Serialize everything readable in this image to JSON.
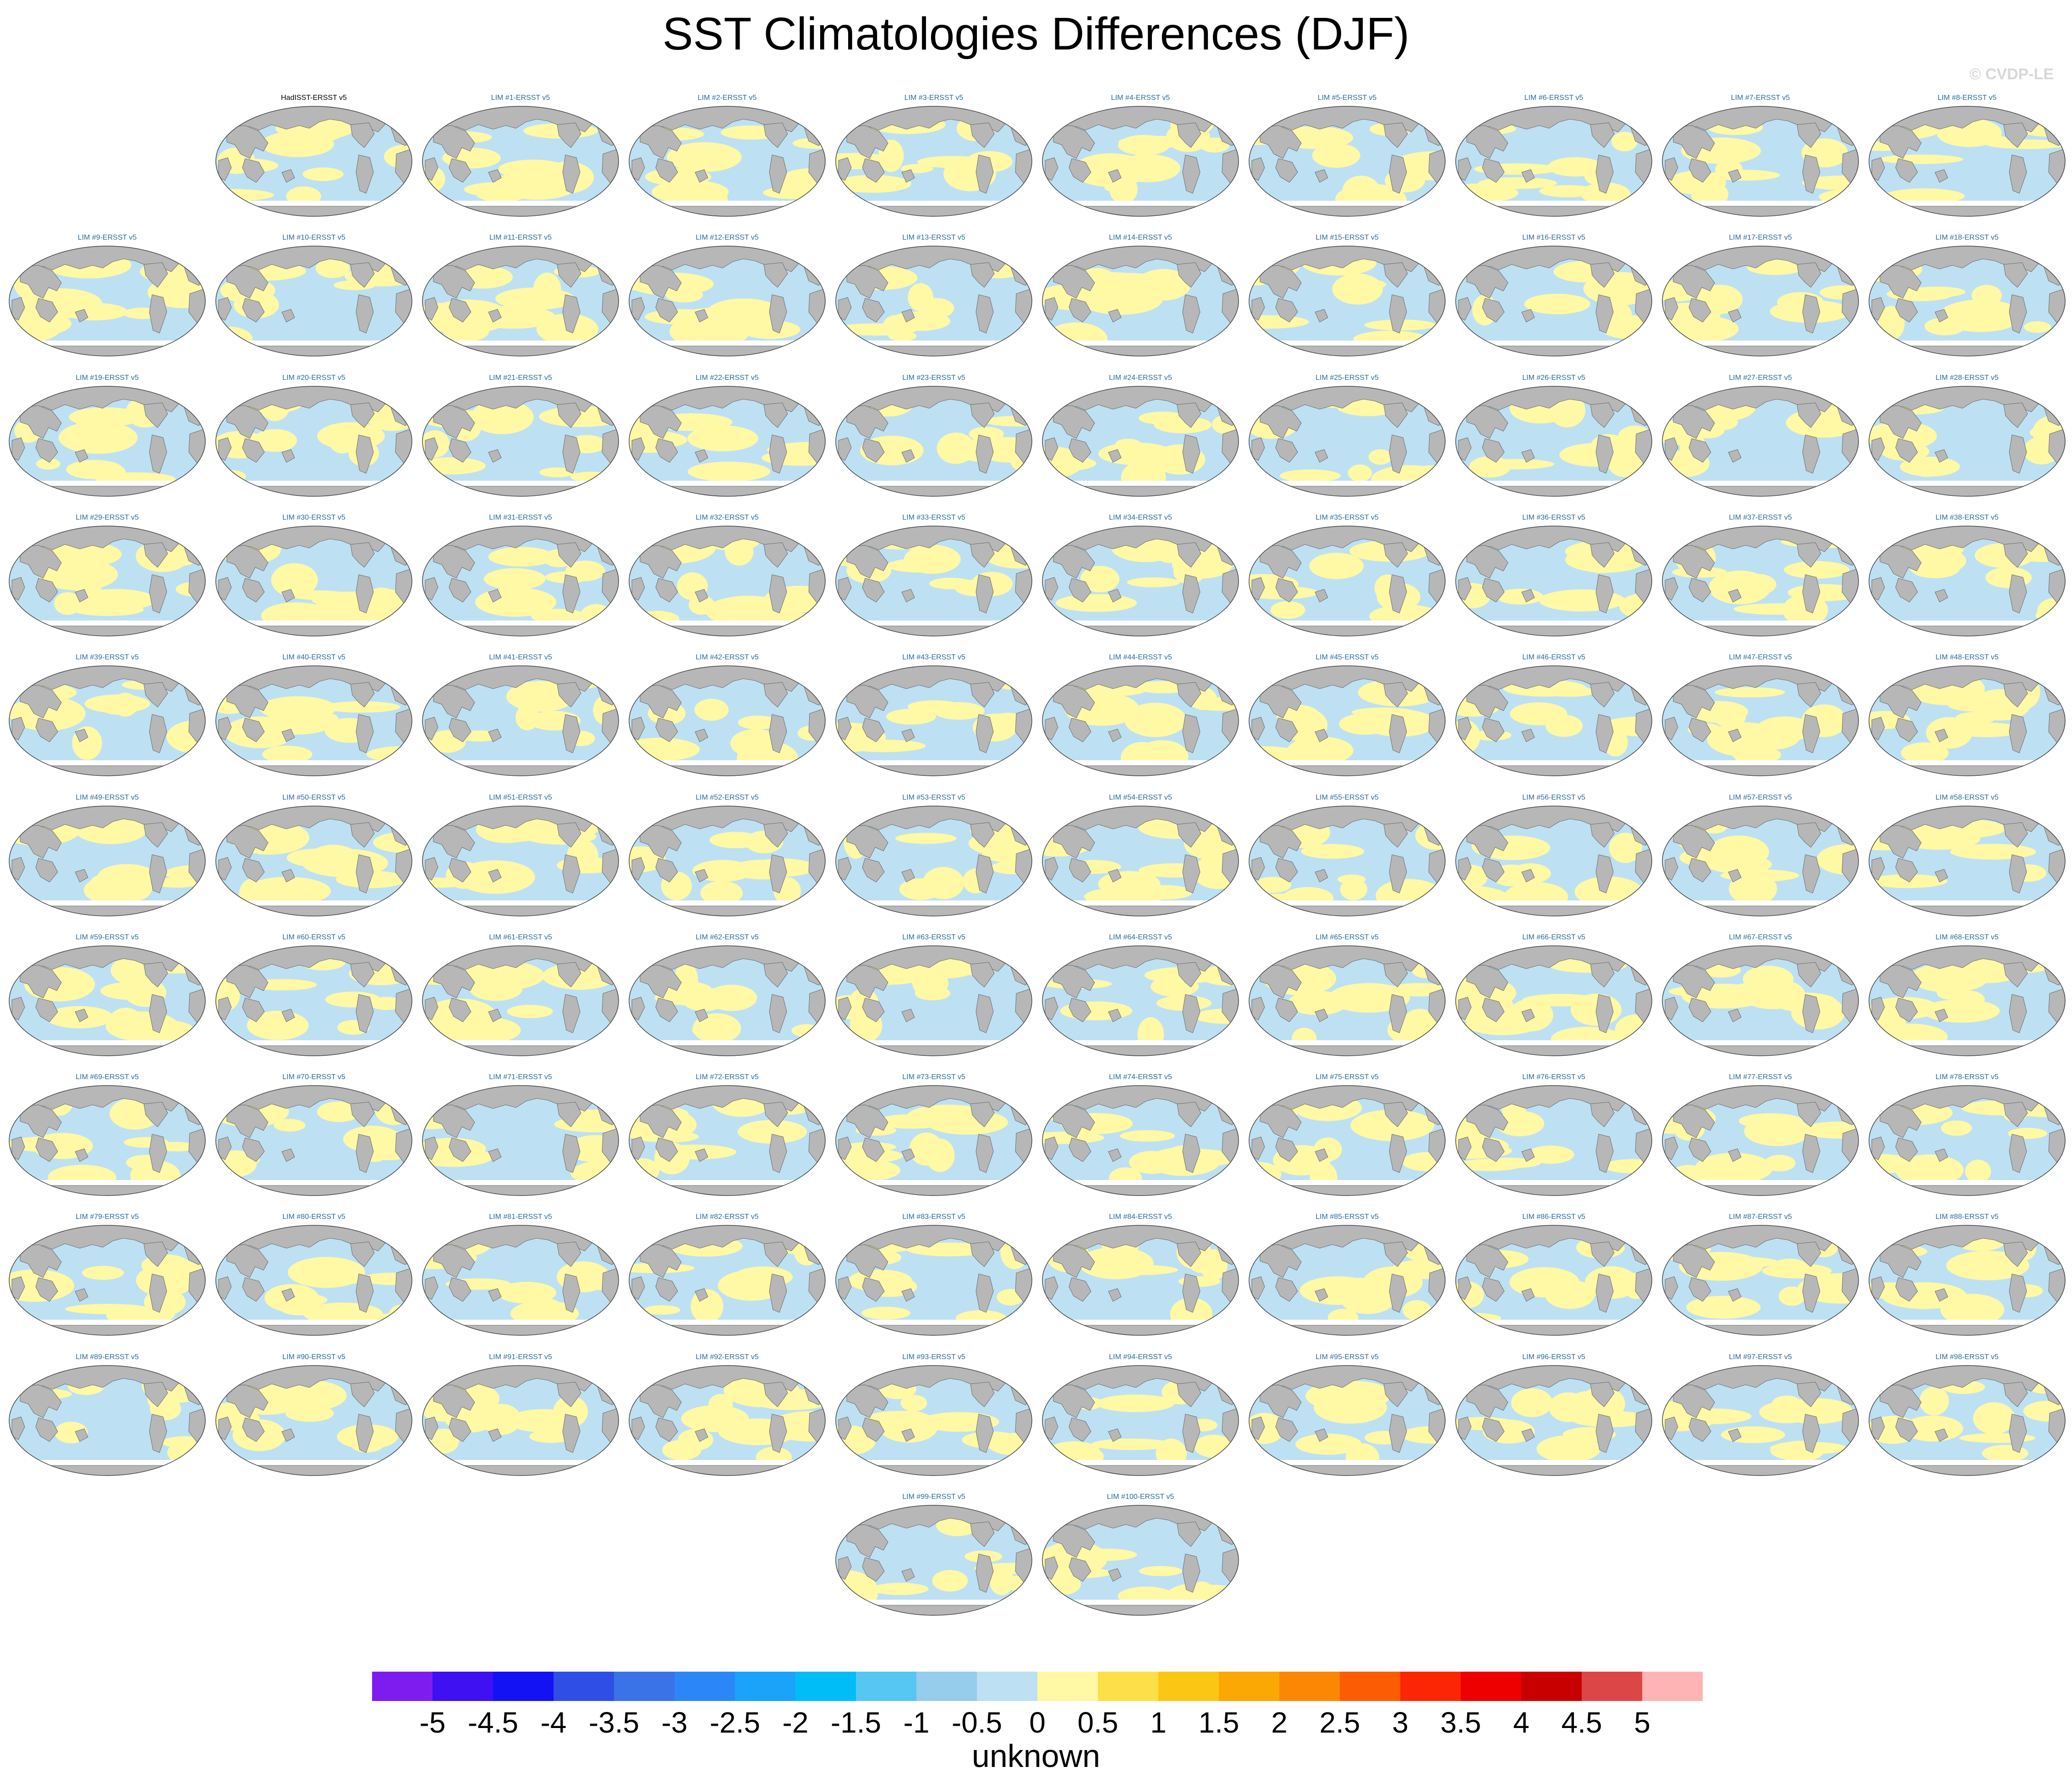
{
  "title": "SST Climatologies Differences (DJF)",
  "copyright": "© CVDP-LE",
  "obs_panel_label": "HadISST-ERSST v5",
  "panel_label_prefix": "LIM #",
  "panel_label_suffix": "-ERSST v5",
  "panel_count": 100,
  "colorbar": {
    "label": "unknown",
    "ticks": [
      "-5",
      "-4.5",
      "-4",
      "-3.5",
      "-3",
      "-2.5",
      "-2",
      "-1.5",
      "-1",
      "-0.5",
      "0",
      "0.5",
      "1",
      "1.5",
      "2",
      "2.5",
      "3",
      "3.5",
      "4",
      "4.5",
      "5"
    ],
    "colors": [
      "#7e1cf0",
      "#3f10f2",
      "#1212f5",
      "#2e4ee6",
      "#3a72e8",
      "#2b87f8",
      "#1aa3f8",
      "#00bdf7",
      "#56c6f2",
      "#96ccec",
      "#bde0f3",
      "#fff8a5",
      "#fde047",
      "#fcc614",
      "#fba805",
      "#fb8704",
      "#fb5c04",
      "#fc2604",
      "#ee0000",
      "#c90000",
      "#dd4646",
      "#feb4b4"
    ]
  },
  "map_colors": {
    "land": "#b7b7b7",
    "negative": "#bde0f3",
    "positive": "#fff8a5",
    "ice": "#ffffff"
  }
}
